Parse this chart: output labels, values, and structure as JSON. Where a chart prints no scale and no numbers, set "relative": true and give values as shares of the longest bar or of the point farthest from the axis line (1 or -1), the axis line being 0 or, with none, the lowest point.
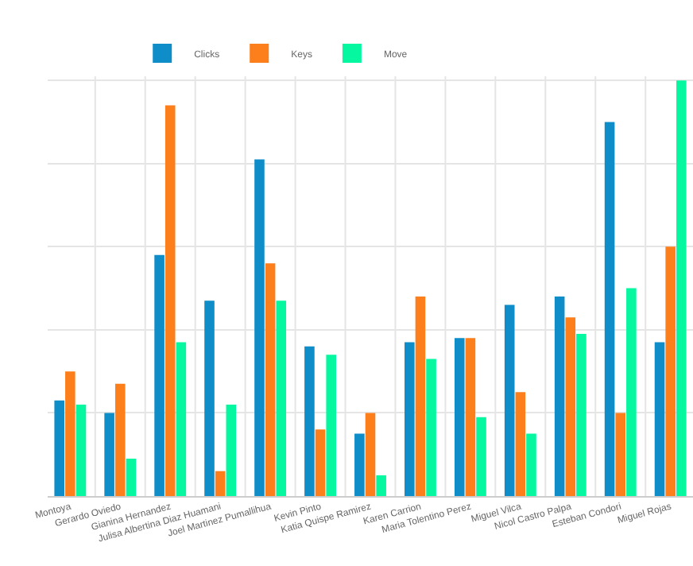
{
  "chart_data": {
    "type": "bar",
    "relative": true,
    "grid": true,
    "legend": "top",
    "categories": [
      "Montoya",
      "Gerardo Oviedo",
      "Gianina Hernandez",
      "Julisa Albertina Diaz Huamani",
      "Joel Martinez Pumallihua",
      "Kevin Pinto",
      "Katia Quispe Ramirez",
      "Karen Carrion",
      "Maria Tolentino Perez",
      "Miguel Vilca",
      "Nicol Castro Palpa",
      "Esteban Condori",
      "Miguel Rojas"
    ],
    "series": [
      {
        "name": "Clicks",
        "color": "#0f8dc8",
        "values": [
          0.23,
          0.2,
          0.58,
          0.47,
          0.81,
          0.36,
          0.15,
          0.37,
          0.38,
          0.46,
          0.48,
          0.9,
          0.37
        ]
      },
      {
        "name": "Keys",
        "color": "#fd7f1c",
        "values": [
          0.3,
          0.27,
          0.94,
          0.06,
          0.56,
          0.16,
          0.2,
          0.48,
          0.38,
          0.25,
          0.43,
          0.2,
          0.6
        ]
      },
      {
        "name": "Move",
        "color": "#05f7a0",
        "values": [
          0.22,
          0.09,
          0.37,
          0.22,
          0.47,
          0.34,
          0.05,
          0.33,
          0.19,
          0.15,
          0.39,
          0.5,
          1.0
        ]
      }
    ]
  }
}
